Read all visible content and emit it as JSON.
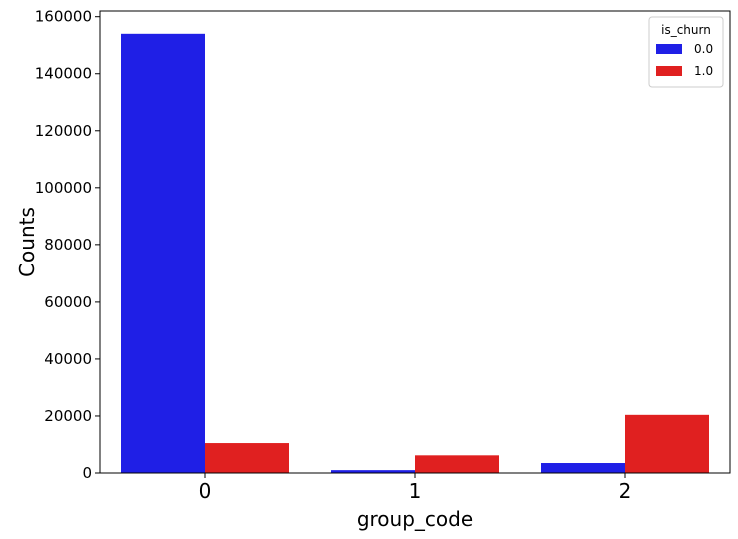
{
  "chart_data": {
    "type": "bar",
    "xlabel": "group_code",
    "ylabel": "Counts",
    "categories": [
      "0",
      "1",
      "2"
    ],
    "ylim": [
      0,
      162000
    ],
    "yticks": [
      "0",
      "20000",
      "40000",
      "60000",
      "80000",
      "100000",
      "120000",
      "140000",
      "160000"
    ],
    "ytick_values": [
      0,
      20000,
      40000,
      60000,
      80000,
      100000,
      120000,
      140000,
      160000
    ],
    "grid": false,
    "legend": {
      "title": "is_churn",
      "placement": "top-right"
    },
    "series": [
      {
        "name": "0.0",
        "color": "#1f1fe6",
        "values": [
          154000,
          1000,
          3500
        ]
      },
      {
        "name": "1.0",
        "color": "#e02020",
        "values": [
          10500,
          6200,
          20400
        ]
      }
    ]
  }
}
